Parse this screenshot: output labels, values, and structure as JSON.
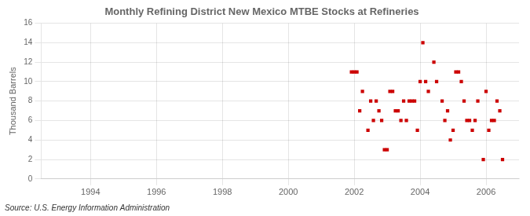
{
  "chart_data": {
    "type": "scatter",
    "title": "Monthly Refining District New Mexico MTBE Stocks at Refineries",
    "ylabel": "Thousand Barrels",
    "annotation": "Source: U.S. Energy Information Administration",
    "color": "#cc0000",
    "marker": "square",
    "grid": true,
    "xlim": [
      1992.5,
      2007.0
    ],
    "ylim": [
      0,
      16
    ],
    "xticks": [
      1994,
      1996,
      1998,
      2000,
      2002,
      2004,
      2006
    ],
    "yticks": [
      0,
      2,
      4,
      6,
      8,
      10,
      12,
      14,
      16
    ],
    "x": [
      2001.917,
      2002.0,
      2002.083,
      2002.167,
      2002.25,
      2002.417,
      2002.5,
      2002.583,
      2002.667,
      2002.75,
      2002.833,
      2002.917,
      2003.0,
      2003.083,
      2003.167,
      2003.25,
      2003.333,
      2003.417,
      2003.5,
      2003.583,
      2003.667,
      2003.75,
      2003.833,
      2003.917,
      2004.0,
      2004.083,
      2004.167,
      2004.25,
      2004.417,
      2004.5,
      2004.667,
      2004.75,
      2004.833,
      2004.917,
      2005.0,
      2005.083,
      2005.167,
      2005.25,
      2005.333,
      2005.417,
      2005.5,
      2005.583,
      2005.667,
      2005.75,
      2005.917,
      2006.0,
      2006.083,
      2006.167,
      2006.25,
      2006.333,
      2006.417,
      2006.5
    ],
    "values": [
      11,
      11,
      11,
      7,
      9,
      5,
      8,
      6,
      8,
      7,
      6,
      3,
      3,
      9,
      9,
      7,
      7,
      6,
      8,
      6,
      8,
      8,
      8,
      5,
      10,
      14,
      10,
      9,
      12,
      10,
      8,
      6,
      7,
      4,
      5,
      11,
      11,
      10,
      8,
      6,
      6,
      5,
      6,
      8,
      2,
      9,
      5,
      6,
      6,
      8,
      7,
      2
    ]
  }
}
